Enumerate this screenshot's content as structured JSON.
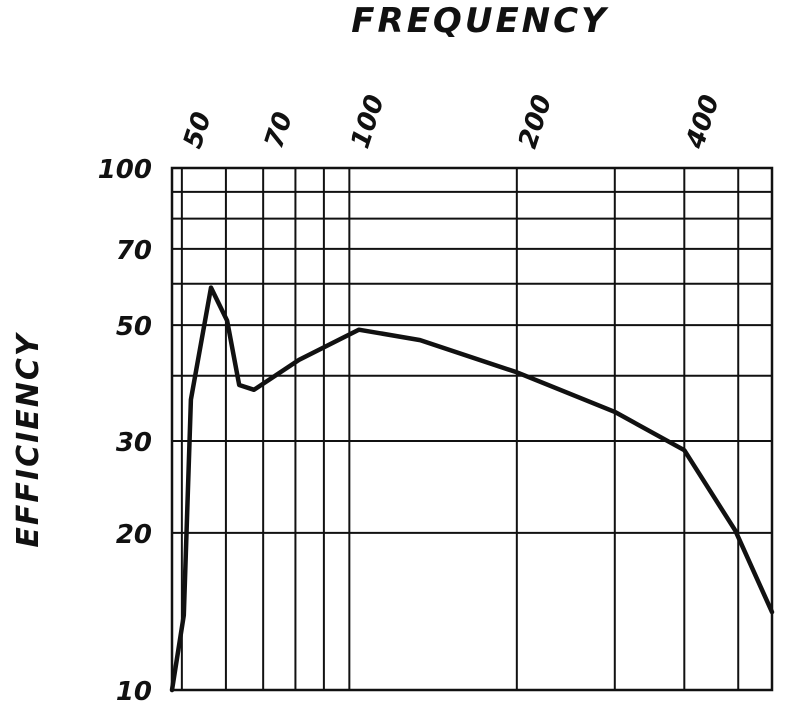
{
  "chart_data": {
    "type": "line",
    "title": "FREQUENCY",
    "y_label": "EFFICIENCY",
    "x_scale": "log",
    "y_scale": "log",
    "xlim": [
      48,
      575
    ],
    "ylim": [
      10,
      100
    ],
    "xticks": [
      50,
      70,
      100,
      200,
      400
    ],
    "xminor": [
      60,
      80,
      90,
      300,
      500
    ],
    "yticks": [
      10,
      20,
      30,
      50,
      70,
      100
    ],
    "yminor": [
      40,
      60,
      80,
      90
    ],
    "grid": true,
    "series": [
      {
        "color": "#111111",
        "x": [
          48,
          50.4,
          51.9,
          56.4,
          60.3,
          63.4,
          67.4,
          81.2,
          104,
          134,
          200,
          300,
          400,
          494,
          575
        ],
        "values": [
          10,
          13.9,
          36,
          59,
          51,
          38.4,
          37.6,
          42.9,
          49,
          46.8,
          40.6,
          34.1,
          28.8,
          20.2,
          14.1
        ]
      }
    ]
  }
}
